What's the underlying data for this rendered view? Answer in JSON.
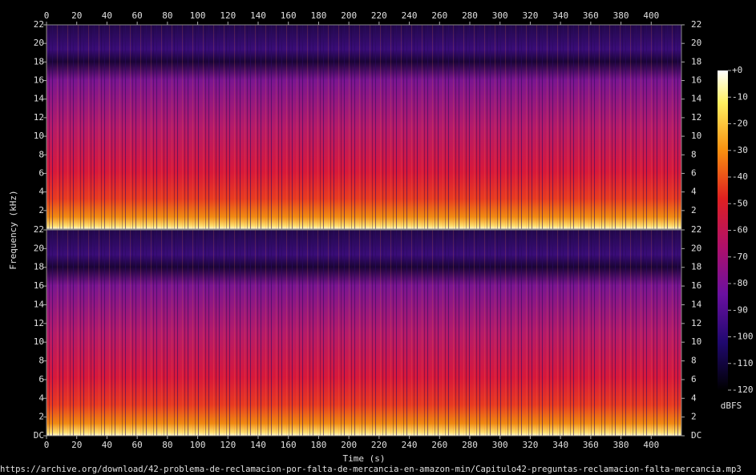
{
  "chart_data": {
    "type": "spectrogram",
    "x_label": "Time (s)",
    "y_label": "Frequency (kHz)",
    "xlim": [
      0,
      420
    ],
    "xticks": [
      0,
      20,
      40,
      60,
      80,
      100,
      120,
      140,
      160,
      180,
      200,
      220,
      240,
      260,
      280,
      300,
      320,
      340,
      360,
      380,
      400
    ],
    "channels": [
      {
        "ylim": [
          0,
          22
        ],
        "yticks": [
          2,
          4,
          6,
          8,
          10,
          12,
          14,
          16,
          18,
          20,
          22
        ]
      },
      {
        "ylim": [
          0,
          22
        ],
        "yticks": [
          {
            "value": 0,
            "label": "DC"
          },
          2,
          4,
          6,
          8,
          10,
          12,
          14,
          16,
          18,
          20,
          22
        ]
      }
    ],
    "colorbar": {
      "label": "dBFS",
      "lim": [
        -120,
        0
      ],
      "ticks": [
        {
          "value": 0,
          "label": "+0"
        },
        -10,
        -20,
        -30,
        -40,
        -50,
        -60,
        -70,
        -80,
        -90,
        -100,
        -110,
        -120
      ]
    },
    "source": "https://archive.org/download/42-problema-de-reclamacion-por-falta-de-mercancia-en-amazon-min/Capitulo42-preguntas-reclamacion-falta-mercancia.mp3"
  }
}
